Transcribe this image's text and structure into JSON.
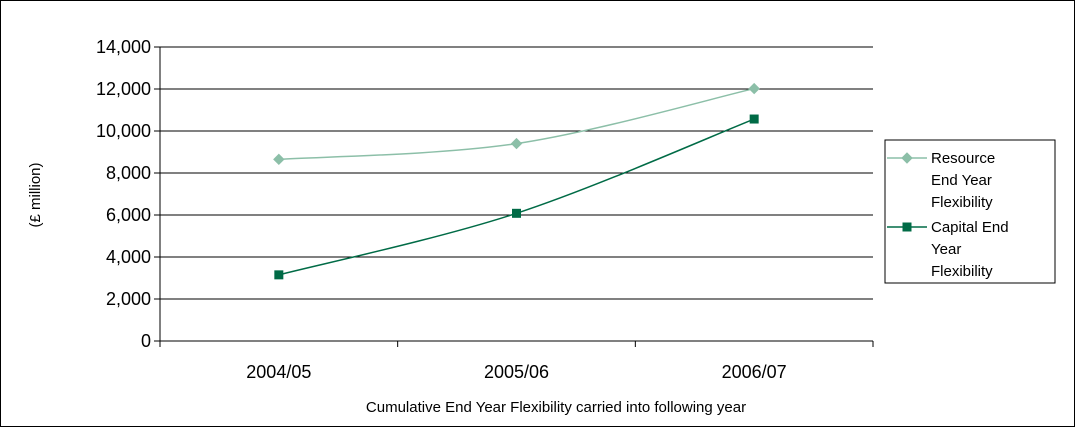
{
  "chart_data": {
    "type": "line",
    "categories": [
      "2004/05",
      "2005/06",
      "2006/07"
    ],
    "series": [
      {
        "name_lines": [
          "Resource",
          "End Year",
          "Flexibility"
        ],
        "values": [
          8650,
          9400,
          12020
        ],
        "color": "#8CBFA8",
        "marker": "diamond"
      },
      {
        "name_lines": [
          "Capital End",
          "Year",
          "Flexibility"
        ],
        "values": [
          3150,
          6080,
          10570
        ],
        "color": "#006B46",
        "marker": "square"
      }
    ],
    "xlabel": "Cumulative End Year Flexibility carried into following year",
    "ylabel": "(£ million)",
    "ylim": [
      0,
      14000
    ],
    "yticks": [
      0,
      2000,
      4000,
      6000,
      8000,
      10000,
      12000,
      14000
    ],
    "ytick_labels": [
      "0",
      "2,000",
      "4,000",
      "6,000",
      "8,000",
      "10,000",
      "12,000",
      "14,000"
    ],
    "grid": true,
    "legend_position": "right"
  }
}
